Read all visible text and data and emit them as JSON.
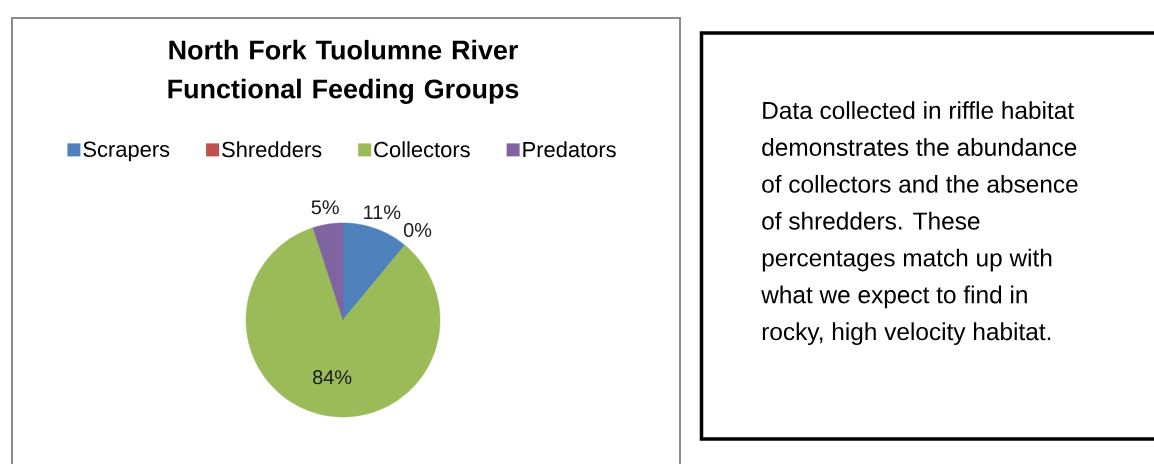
{
  "chart_data": [
    {
      "type": "pie",
      "title": "North Fork Tuolumne River Functional Feeding Groups",
      "categories": [
        "Scrapers",
        "Shredders",
        "Collectors",
        "Predators"
      ],
      "values": [
        11,
        0,
        84,
        5
      ],
      "colors": [
        "#4f81bd",
        "#c0504d",
        "#9bbb59",
        "#8064a2"
      ],
      "value_labels": [
        "11%",
        "0%",
        "84%",
        "5%"
      ],
      "legend": "top"
    },
    {
      "type": "other",
      "annotations": [
        "Data collected in riffle habitat demonstrates the abundance of collectors and the absence of shredders. These percentages match up with what we expect to find in rocky, high velocity habitat."
      ]
    }
  ]
}
